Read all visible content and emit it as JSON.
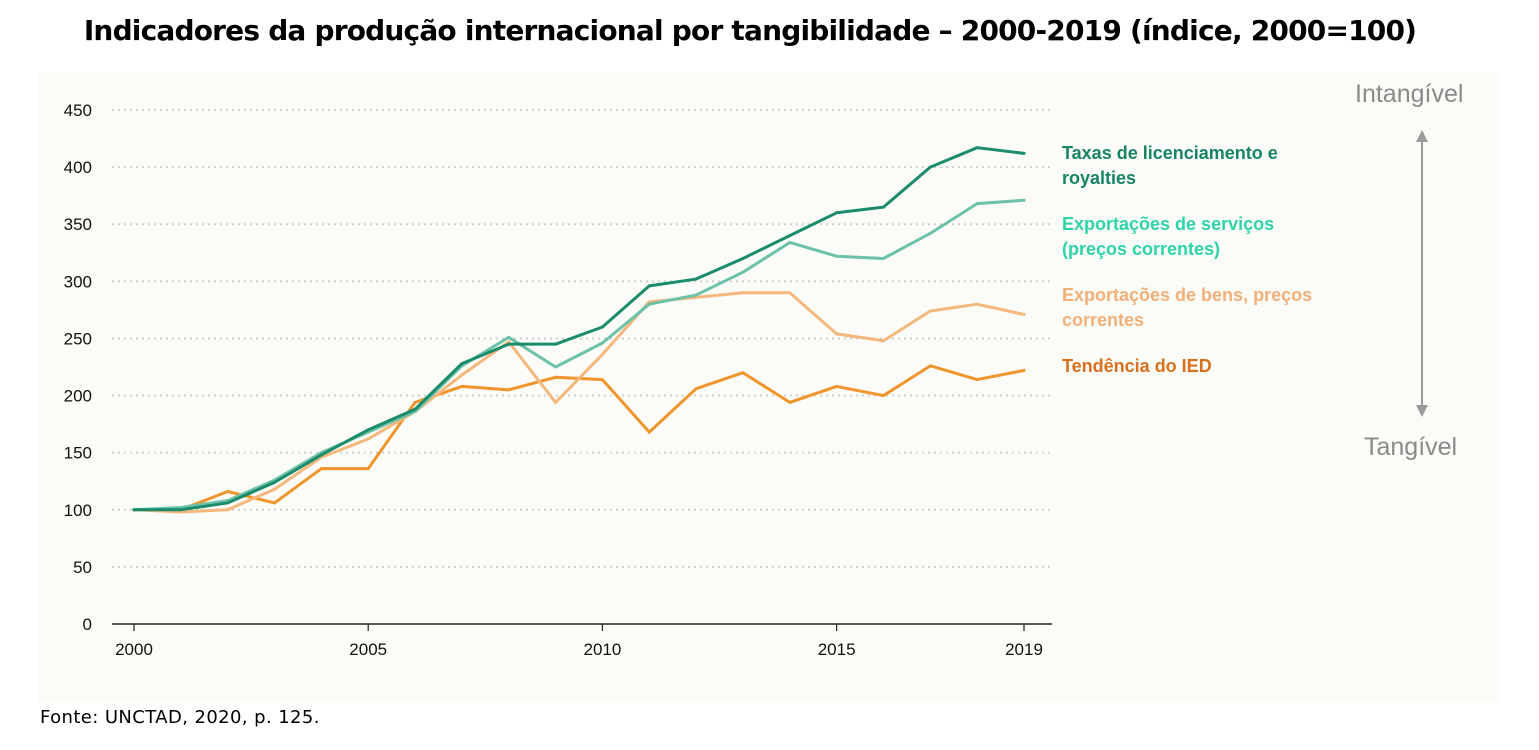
{
  "title": "Indicadores da produção internacional por tangibilidade – 2000-2019 (índice, 2000=100)",
  "source": "Fonte: UNCTAD, 2020, p. 125.",
  "scale_labels": {
    "top": "Intangível",
    "bottom": "Tangível"
  },
  "colors": {
    "royalties": "#1a8c6c",
    "services": "#6cc2a8",
    "goods": "#f4b87c",
    "fdi": "#f0952c",
    "royalties_text": "#178466",
    "services_text": "#2ed4a8",
    "goods_text": "#f2b078",
    "fdi_text": "#d8701e",
    "grid": "#cfcfcf",
    "arrow": "#9a9a9a"
  },
  "chart_data": {
    "type": "line",
    "title": "Indicadores da produção internacional por tangibilidade – 2000-2019 (índice, 2000=100)",
    "xlabel": "",
    "ylabel": "",
    "xlim": [
      2000,
      2019
    ],
    "ylim": [
      0,
      450
    ],
    "x_ticks": [
      "2000",
      "2005",
      "2010",
      "2015",
      "2019"
    ],
    "y_ticks": [
      "0",
      "50",
      "100",
      "150",
      "200",
      "250",
      "300",
      "350",
      "400",
      "450"
    ],
    "grid": true,
    "legend_position": "right",
    "x": [
      2000,
      2001,
      2002,
      2003,
      2004,
      2005,
      2006,
      2007,
      2008,
      2009,
      2010,
      2011,
      2012,
      2013,
      2014,
      2015,
      2016,
      2017,
      2018,
      2019
    ],
    "series": [
      {
        "name": "Taxas de licenciamento e royalties",
        "color_key": "royalties",
        "values": [
          100,
          100,
          106,
          124,
          148,
          170,
          188,
          228,
          245,
          245,
          260,
          296,
          302,
          320,
          340,
          360,
          365,
          400,
          417,
          412
        ]
      },
      {
        "name": "Exportações de serviços (preços correntes)",
        "color_key": "services",
        "values": [
          100,
          102,
          108,
          126,
          150,
          168,
          186,
          226,
          251,
          225,
          246,
          280,
          288,
          308,
          334,
          322,
          320,
          342,
          368,
          371
        ]
      },
      {
        "name": "Exportações de bens, preços correntes",
        "color_key": "goods",
        "values": [
          100,
          98,
          100,
          118,
          146,
          162,
          186,
          218,
          247,
          194,
          236,
          282,
          286,
          290,
          290,
          254,
          248,
          274,
          280,
          271
        ]
      },
      {
        "name": "Tendência do IED",
        "color_key": "fdi",
        "values": [
          100,
          100,
          116,
          106,
          136,
          136,
          194,
          208,
          205,
          216,
          214,
          168,
          206,
          220,
          194,
          208,
          200,
          226,
          214,
          222
        ]
      }
    ]
  },
  "legend": [
    {
      "lines": [
        "Taxas de licenciamento e",
        "royalties"
      ],
      "color_key": "royalties_text"
    },
    {
      "lines": [
        "Exportações de serviços",
        "(preços correntes)"
      ],
      "color_key": "services_text"
    },
    {
      "lines": [
        "Exportações de bens, preços",
        "correntes"
      ],
      "color_key": "goods_text"
    },
    {
      "lines": [
        "Tendência do IED"
      ],
      "color_key": "fdi_text"
    }
  ]
}
